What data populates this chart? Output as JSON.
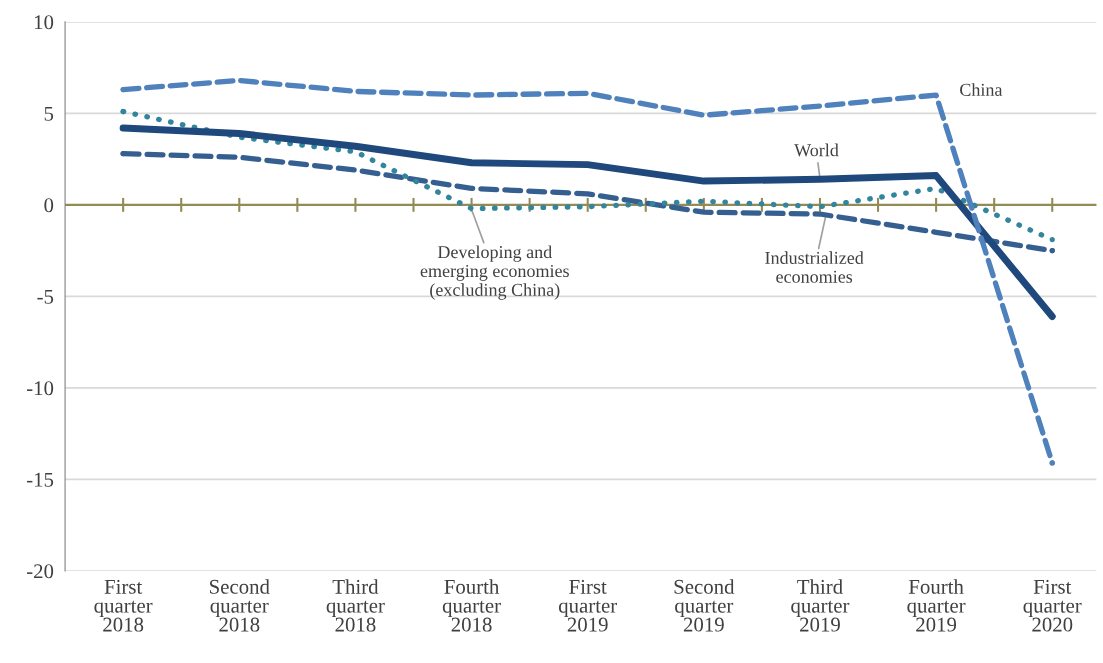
{
  "chart_data": {
    "type": "line",
    "categories": [
      "First\nquarter\n2018",
      "Second\nquarter\n2018",
      "Third\nquarter\n2018",
      "Fourth\nquarter\n2018",
      "First\nquarter\n2019",
      "Second\nquarter\n2019",
      "Third\nquarter\n2019",
      "Fourth\nquarter\n2019",
      "First\nquarter\n2020"
    ],
    "series": [
      {
        "name": "China",
        "color": "#4f81bd",
        "line_style": "dashed",
        "values": [
          6.3,
          6.8,
          6.2,
          6.0,
          6.1,
          4.9,
          5.4,
          6.0,
          -14.1
        ]
      },
      {
        "name": "World",
        "color": "#1f497d",
        "line_style": "solid",
        "values": [
          4.2,
          3.9,
          3.2,
          2.3,
          2.2,
          1.3,
          1.4,
          1.6,
          -6.1
        ]
      },
      {
        "name": "Developing and\nemerging economies\n(excluding China)",
        "color": "#31859c",
        "line_style": "dotted",
        "values": [
          5.1,
          3.7,
          2.9,
          -0.2,
          -0.1,
          0.2,
          -0.1,
          0.9,
          -1.9
        ]
      },
      {
        "name": "Industrialized\neconomies",
        "color": "#365f91",
        "line_style": "dashed",
        "values": [
          2.8,
          2.6,
          1.9,
          0.9,
          0.6,
          -0.4,
          -0.5,
          -1.5,
          -2.5
        ]
      }
    ],
    "ref_lines": [
      {
        "axis": "y",
        "value": 0,
        "color": "#948a54"
      }
    ],
    "ylim": [
      -20,
      10
    ],
    "yticks": [
      -20,
      -15,
      -10,
      -5,
      0,
      5,
      10
    ],
    "grid": "y",
    "legend": false
  }
}
